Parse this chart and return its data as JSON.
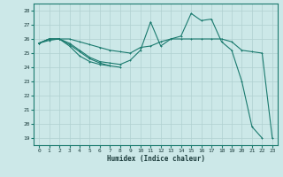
{
  "xlabel": "Humidex (Indice chaleur)",
  "bg_color": "#cce8e8",
  "grid_color": "#b0d0d0",
  "line_color": "#1a7a6e",
  "xlim": [
    -0.5,
    23.5
  ],
  "ylim": [
    18.5,
    28.5
  ],
  "xticks": [
    0,
    1,
    2,
    3,
    4,
    5,
    6,
    7,
    8,
    9,
    10,
    11,
    12,
    13,
    14,
    15,
    16,
    17,
    18,
    19,
    20,
    21,
    22,
    23
  ],
  "yticks": [
    19,
    20,
    21,
    22,
    23,
    24,
    25,
    26,
    27,
    28
  ],
  "line1_x": [
    0,
    1,
    2,
    3,
    4,
    5,
    6,
    7,
    8,
    9,
    10,
    11,
    12,
    13,
    14,
    15,
    16,
    17,
    18,
    19,
    20,
    21,
    22,
    23
  ],
  "line1_y": [
    25.7,
    26.0,
    26.0,
    26.0,
    25.8,
    25.6,
    25.4,
    25.2,
    25.1,
    25.0,
    25.4,
    25.5,
    25.8,
    26.0,
    26.0,
    26.0,
    26.0,
    26.0,
    26.0,
    25.8,
    25.2,
    25.1,
    25.0,
    19.0
  ],
  "line2_x": [
    0,
    1,
    2,
    3,
    4,
    5,
    6,
    7,
    8,
    9,
    10,
    11,
    12,
    13,
    14,
    15,
    16,
    17,
    18,
    19,
    20,
    21,
    22,
    23
  ],
  "line2_y": [
    25.7,
    26.0,
    26.0,
    25.7,
    25.2,
    24.7,
    24.4,
    24.3,
    24.2,
    24.5,
    25.2,
    27.2,
    25.5,
    26.0,
    26.2,
    27.8,
    27.3,
    27.4,
    25.8,
    25.2,
    23.0,
    19.8,
    19.0,
    null
  ],
  "line3_x": [
    0,
    1,
    2,
    3,
    4,
    5,
    6,
    7,
    8
  ],
  "line3_y": [
    25.7,
    25.9,
    26.0,
    25.5,
    24.8,
    24.4,
    24.2,
    24.1,
    24.0
  ],
  "line4_x": [
    0,
    1,
    2,
    3,
    4,
    5,
    6,
    7
  ],
  "line4_y": [
    25.7,
    26.0,
    26.0,
    25.6,
    25.1,
    24.6,
    24.3,
    24.1
  ]
}
